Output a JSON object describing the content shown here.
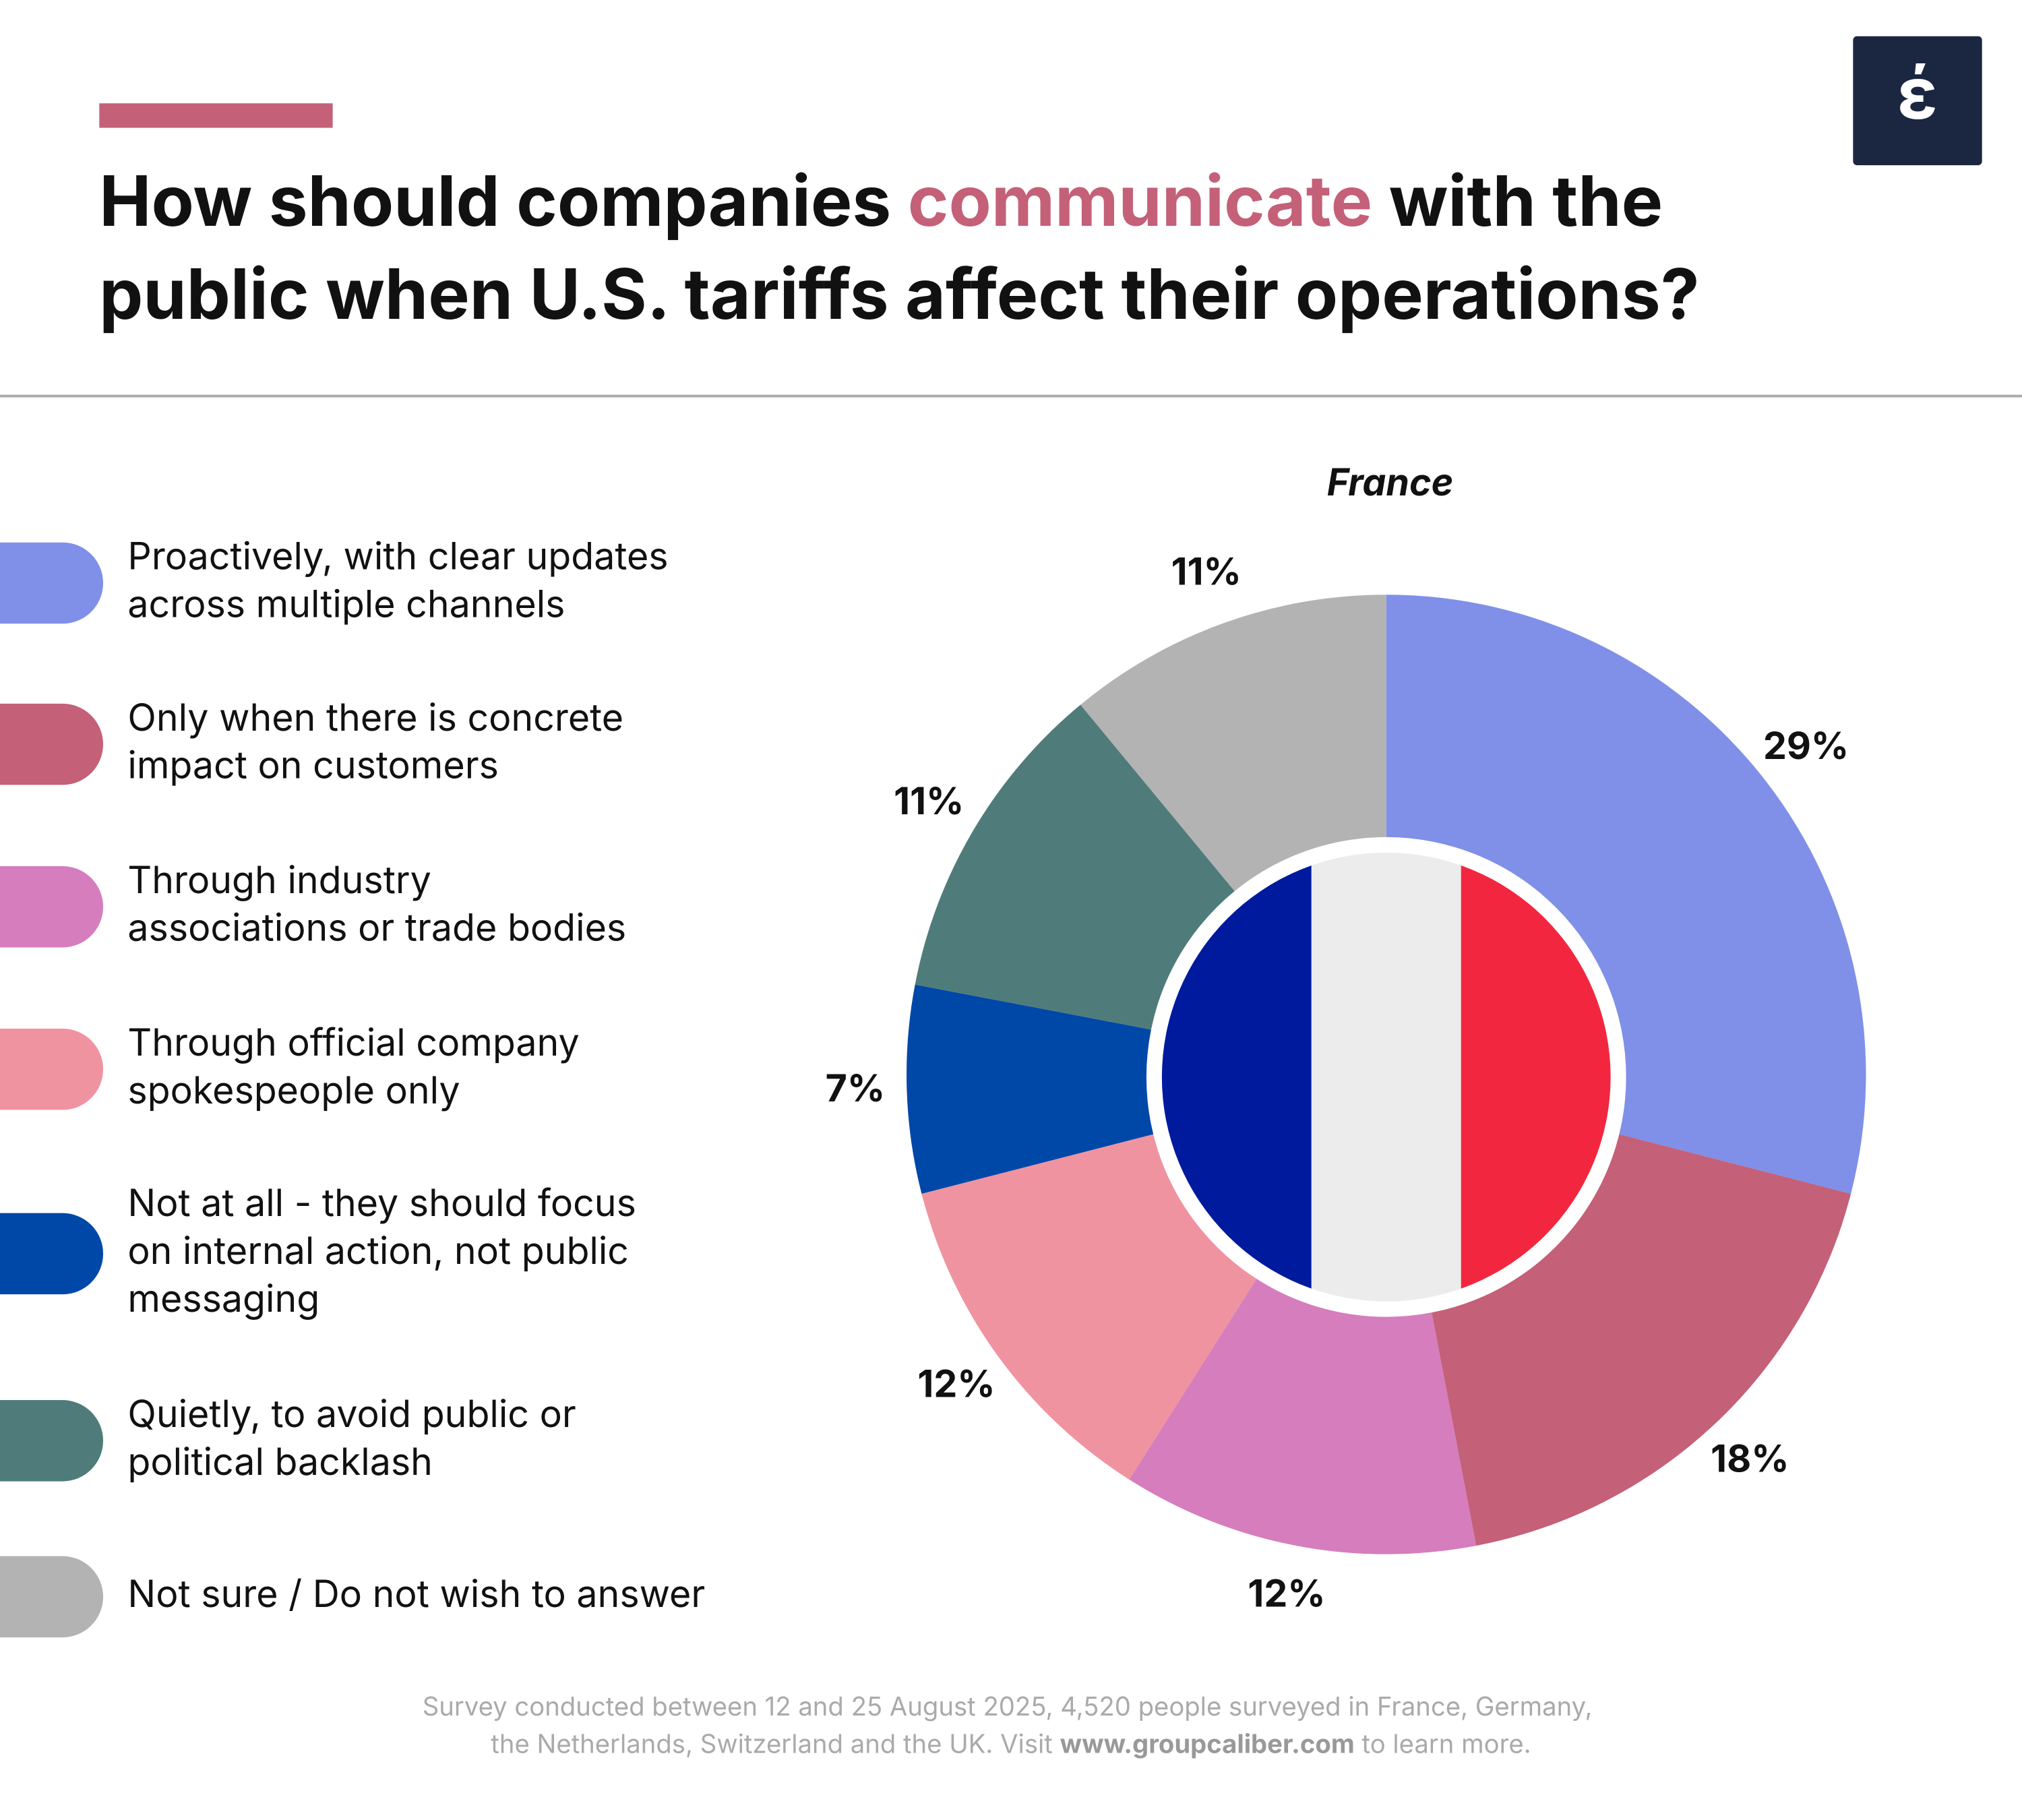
{
  "logo": "έ",
  "chart_data": {
    "type": "donut",
    "title": [
      "How should companies ",
      "communicate",
      " with the",
      "public when U.S. tariffs affect their operations?"
    ],
    "subtitle": "France",
    "categories": [
      "Proactively, with clear updates\nacross multiple channels",
      "Only when there is concrete\nimpact on customers",
      "Through industry\nassociations or trade bodies",
      "Through official company\nspokespeople only",
      "Not at all - they should focus\non internal action, not public\nmessaging",
      "Quietly, to avoid public or\npolitical backlash",
      "Not sure / Do not wish to answer"
    ],
    "values": [
      29,
      18,
      12,
      12,
      7,
      11,
      11
    ],
    "value_labels": [
      "29%",
      "18%",
      "12%",
      "12%",
      "7%",
      "11%",
      "11%"
    ],
    "colors": [
      "#8090e8",
      "#c46078",
      "#d57dbd",
      "#f093a0",
      "#0048a8",
      "#4f7c7a",
      "#b3b3b3"
    ],
    "footer": [
      "Survey conducted between 12 and 25 August 2025, 4,520 people surveyed in France, Germany,",
      "the Netherlands, Switzerland and the UK. Visit ",
      "www.groupcaliber.com",
      " to learn more."
    ]
  }
}
